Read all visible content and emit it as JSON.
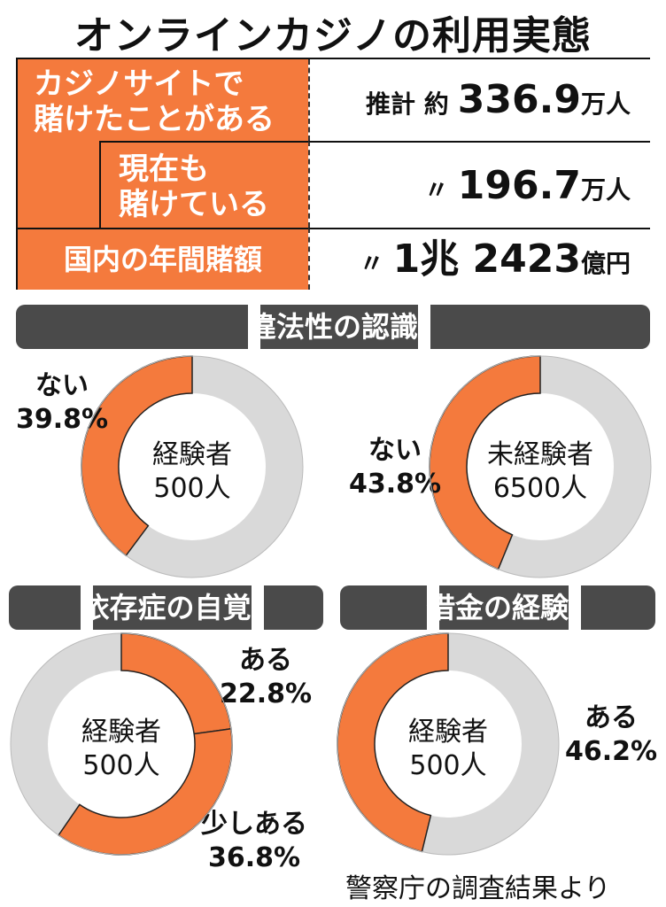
{
  "title": "オンラインカジノの利用実態",
  "stats": [
    {
      "label": "カジノサイトで\n賭けたことがある",
      "prefix": "推計 約",
      "value": "336.9",
      "unit": "万人"
    },
    {
      "label": "現在も\n賭けている",
      "prefix": "〃",
      "value": "196.7",
      "unit": "万人"
    },
    {
      "label": "国内の年間賭額",
      "prefix": "〃",
      "value": "1兆 2423",
      "unit": "億円"
    }
  ],
  "sections": {
    "recognition": "違法性の認識",
    "dependency": "依存症の自覚",
    "debt": "借金の経験"
  },
  "colors": {
    "highlight": "#f47a3d",
    "rest": "#d9d9d9",
    "banner": "#4a4a4a"
  },
  "chart_data": [
    {
      "type": "pie",
      "section": "違法性の認識",
      "center": [
        "経験者",
        "500人"
      ],
      "slices": [
        {
          "label": "ない",
          "value": 39.8,
          "value_label": "39.8%",
          "color": "#f47a3d"
        }
      ]
    },
    {
      "type": "pie",
      "section": "違法性の認識",
      "center": [
        "未経験者",
        "6500人"
      ],
      "slices": [
        {
          "label": "ない",
          "value": 43.8,
          "value_label": "43.8%",
          "color": "#f47a3d"
        }
      ]
    },
    {
      "type": "pie",
      "section": "依存症の自覚",
      "center": [
        "経験者",
        "500人"
      ],
      "slices": [
        {
          "label": "ある",
          "value": 22.8,
          "value_label": "22.8%",
          "color": "#f47a3d"
        },
        {
          "label": "少しある",
          "value": 36.8,
          "value_label": "36.8%",
          "color": "#f47a3d"
        }
      ]
    },
    {
      "type": "pie",
      "section": "借金の経験",
      "center": [
        "経験者",
        "500人"
      ],
      "slices": [
        {
          "label": "ある",
          "value": 46.2,
          "value_label": "46.2%",
          "color": "#f47a3d"
        }
      ]
    }
  ],
  "source": "警察庁の調査結果より"
}
